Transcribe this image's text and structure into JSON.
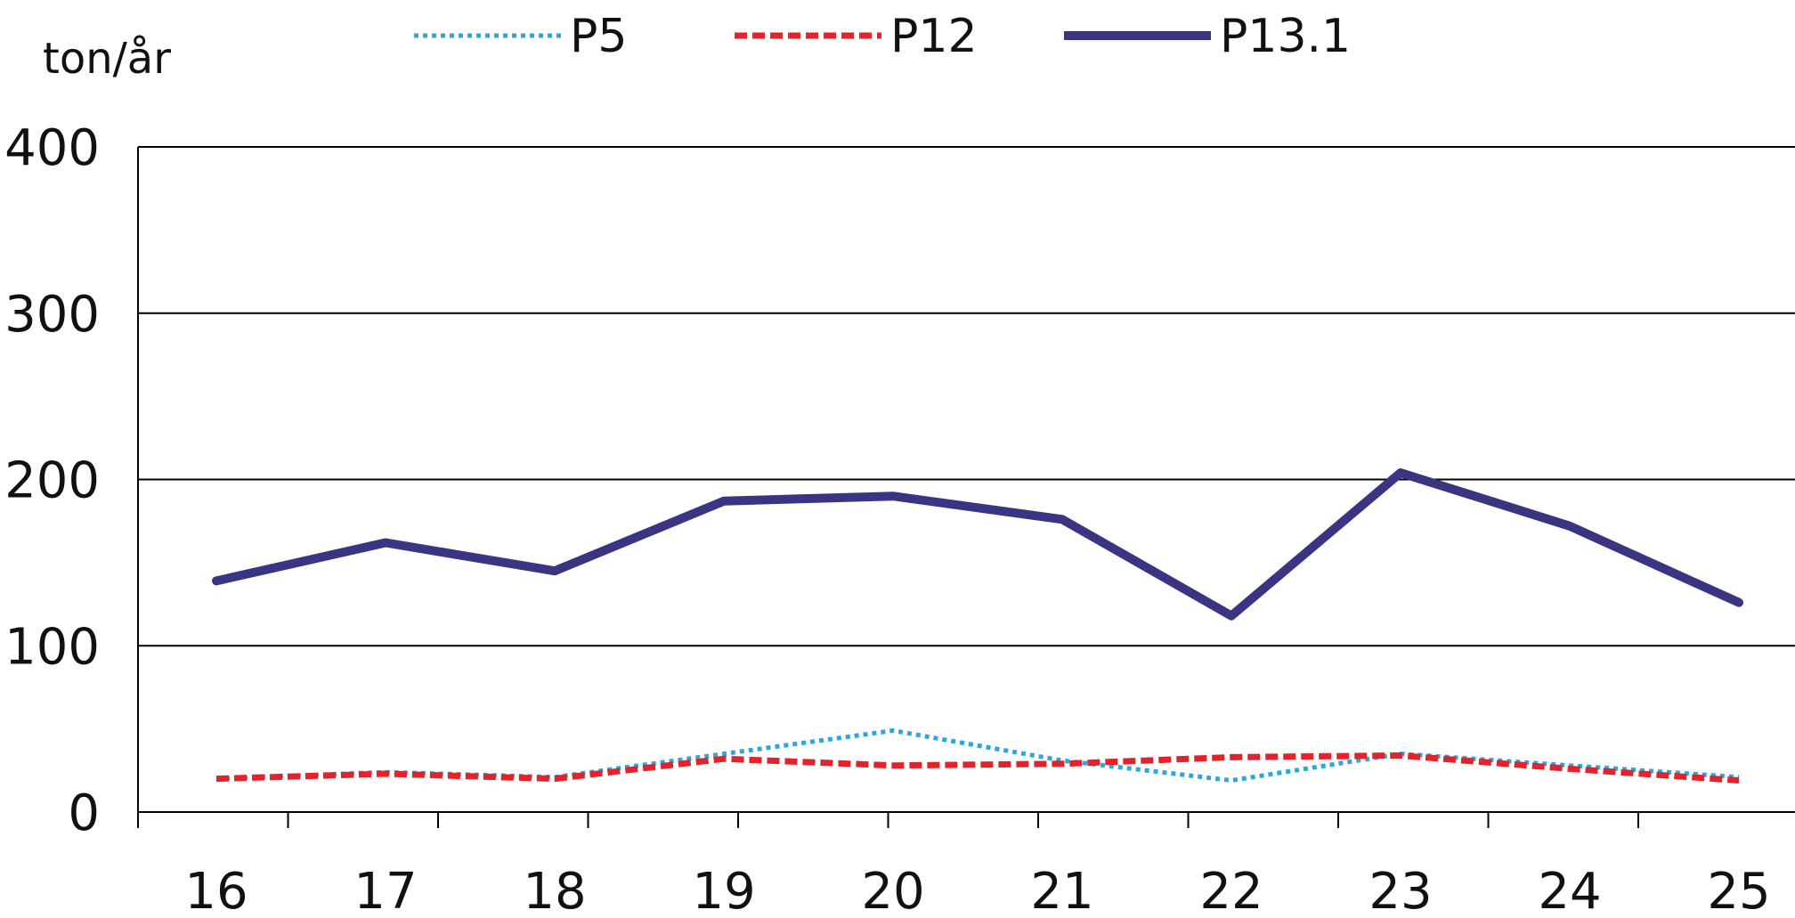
{
  "chart_data": {
    "type": "line",
    "title": "",
    "xlabel": "",
    "ylabel": "ton/år",
    "categories": [
      "16",
      "17",
      "18",
      "19",
      "20",
      "21",
      "22",
      "23",
      "24",
      "25"
    ],
    "ylim": [
      0,
      400
    ],
    "yticks": [
      "0",
      "100",
      "200",
      "300",
      "400"
    ],
    "grid": true,
    "legend_position": "top",
    "series": [
      {
        "name": "P5",
        "color": "#29a8e0",
        "style": "dotted",
        "values": [
          20,
          24,
          21,
          35,
          49,
          31,
          19,
          35,
          28,
          21
        ]
      },
      {
        "name": "P12",
        "color": "#e3232b",
        "style": "dashed",
        "values": [
          20,
          23,
          20,
          32,
          28,
          29,
          33,
          34,
          26,
          19
        ]
      },
      {
        "name": "P13.1",
        "color": "#3a3583",
        "style": "solid",
        "values": [
          139,
          162,
          145,
          187,
          190,
          176,
          118,
          204,
          172,
          126
        ]
      }
    ]
  }
}
